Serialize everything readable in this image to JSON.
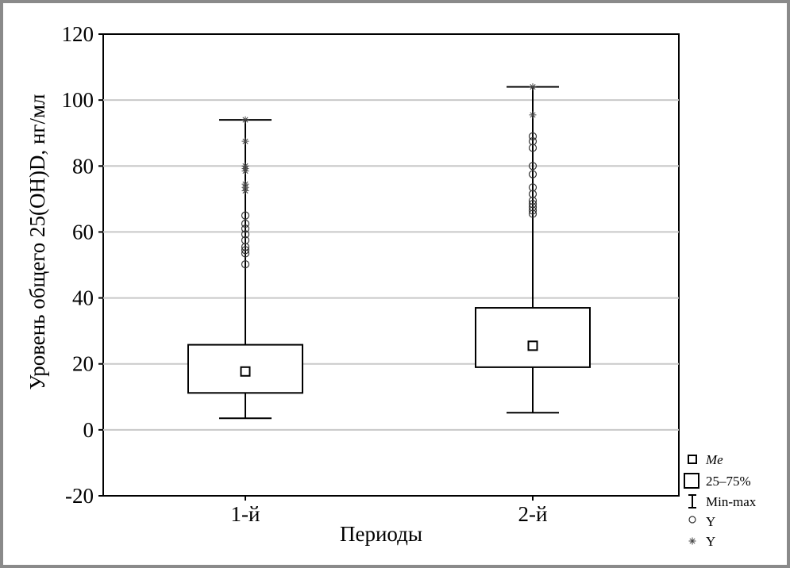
{
  "chart_data": {
    "type": "box",
    "xlabel": "Периоды",
    "ylabel": "Уровень общего 25(OH)D, нг/мл",
    "ylim": [
      -20,
      120
    ],
    "y_ticks": [
      -20,
      0,
      20,
      40,
      60,
      80,
      100,
      120
    ],
    "y_tick_labels": [
      "-20",
      "0",
      "20",
      "40",
      "60",
      "80",
      "100",
      "120"
    ],
    "grid": "horizontal",
    "legend_position": "bottom-right outside",
    "categories": [
      "1-й",
      "2-й"
    ],
    "boxes": [
      {
        "category": "1-й",
        "median": 17.7,
        "q1": 11.2,
        "q3": 25.8,
        "min": 3.5,
        "max": 94.0,
        "outliers": [
          50.2,
          53.5,
          54.5,
          55.5,
          57.5,
          59.3,
          61.0,
          62.5,
          65.0
        ],
        "extremes": [
          72.5,
          73.5,
          74.5,
          78.5,
          79.2,
          80.0,
          87.5,
          94.0
        ]
      },
      {
        "category": "2-й",
        "median": 25.5,
        "q1": 19.0,
        "q3": 37.0,
        "min": 5.2,
        "max": 104.0,
        "outliers": [
          65.5,
          66.5,
          67.5,
          68.5,
          69.5,
          71.5,
          73.5,
          77.5,
          80.0,
          85.5,
          87.5,
          89.0
        ],
        "extremes": [
          95.5,
          104.0
        ]
      }
    ],
    "legend": [
      {
        "symbol": "median-square",
        "label": "Me",
        "italic": true
      },
      {
        "symbol": "box",
        "label": "25–75%"
      },
      {
        "symbol": "whisker",
        "label": "Min-max"
      },
      {
        "symbol": "circle",
        "label": "Y"
      },
      {
        "symbol": "asterisk",
        "label": "Y"
      }
    ]
  }
}
